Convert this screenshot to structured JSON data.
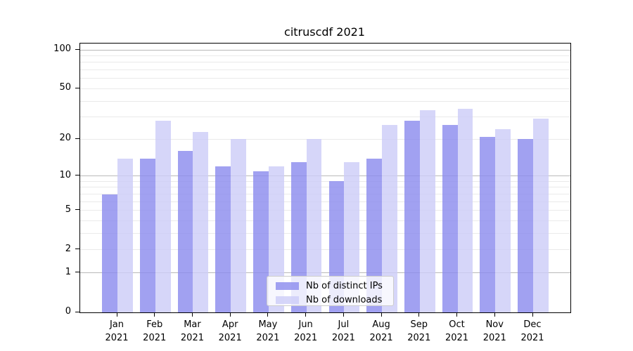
{
  "title": "citruscdf 2021",
  "chart_data": {
    "type": "bar",
    "title": "citruscdf 2021",
    "categories": [
      "Jan 2021",
      "Feb 2021",
      "Mar 2021",
      "Apr 2021",
      "May 2021",
      "Jun 2021",
      "Jul 2021",
      "Aug 2021",
      "Sep 2021",
      "Oct 2021",
      "Nov 2021",
      "Dec 2021"
    ],
    "x_tick_line1": [
      "Jan",
      "Feb",
      "Mar",
      "Apr",
      "May",
      "Jun",
      "Jul",
      "Aug",
      "Sep",
      "Oct",
      "Nov",
      "Dec"
    ],
    "x_tick_line2": "2021",
    "series": [
      {
        "name": "Nb of distinct IPs",
        "color": "rgba(140,140,238,0.82)",
        "values": [
          7,
          14,
          16,
          12,
          11,
          13,
          9,
          14,
          28,
          26,
          21,
          20
        ]
      },
      {
        "name": "Nb of downloads",
        "color": "rgba(205,205,248,0.82)",
        "values": [
          14,
          28,
          23,
          20,
          12,
          20,
          13,
          26,
          34,
          35,
          24,
          29
        ]
      }
    ],
    "yscale": "log1p",
    "ylim": [
      0,
      112
    ],
    "yticks": [
      0,
      1,
      2,
      5,
      10,
      20,
      50,
      100
    ],
    "major_gridlines": [
      1,
      10,
      100
    ],
    "minor_gridlines": [
      2,
      3,
      4,
      5,
      6,
      7,
      8,
      9,
      20,
      30,
      40,
      50,
      60,
      70,
      80,
      90
    ],
    "grid": true,
    "legend_position": "lower center",
    "xlabel": "",
    "ylabel": ""
  },
  "colors": {
    "bar_distinct_ips": "rgba(140,140,238,0.82)",
    "bar_downloads": "rgba(205,205,248,0.82)",
    "major_grid": "#b9b9b9",
    "minor_grid": "#eaeaea",
    "spine": "#000000",
    "legend_border": "#cccccc"
  }
}
